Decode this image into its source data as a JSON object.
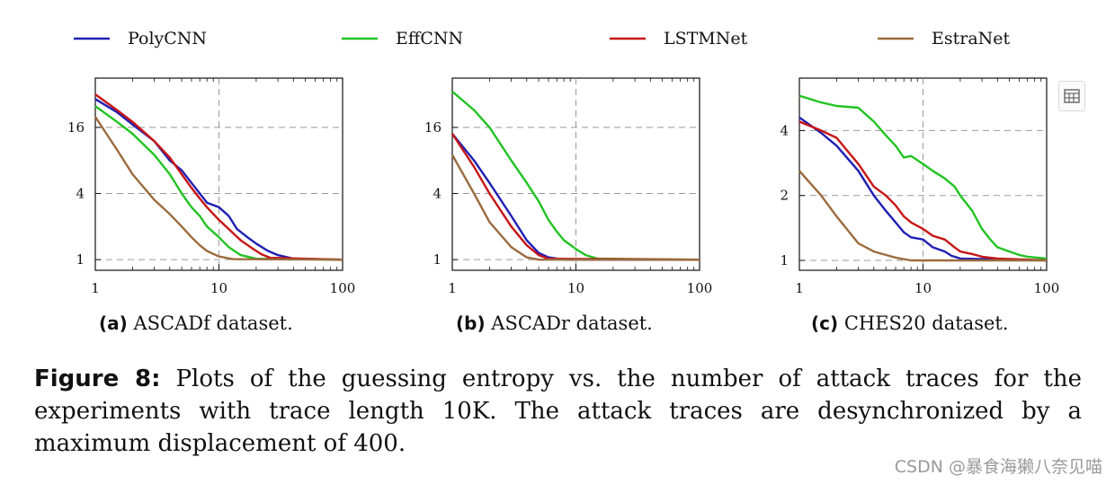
{
  "legend": [
    {
      "name": "PolyCNN",
      "color": "#1f1fb4"
    },
    {
      "name": "EffCNN",
      "color": "#22c322"
    },
    {
      "name": "LSTMNet",
      "color": "#c81414"
    },
    {
      "name": "EstraNet",
      "color": "#9b6b3e"
    }
  ],
  "subcaptions": [
    {
      "tag": "(a)",
      "text": " ASCADf dataset."
    },
    {
      "tag": "(b)",
      "text": " ASCADr dataset."
    },
    {
      "tag": "(c)",
      "text": " CHES20 dataset."
    }
  ],
  "caption": {
    "label": "Figure 8:",
    "text": " Plots of the guessing entropy vs. the number of attack traces for the experiments with trace length 10K. The attack traces are desynchronized by a maximum displacement of 400."
  },
  "watermark": "CSDN @暴食海獭八奈见喵",
  "expand_icon": "expand-icon",
  "chart_data": [
    {
      "type": "line",
      "x_scale": "log",
      "y_scale": "log",
      "xlim": [
        1,
        100
      ],
      "ylim": [
        0.8,
        45
      ],
      "xticks": [
        {
          "v": 1,
          "label": "1"
        },
        {
          "v": 10,
          "label": "10"
        },
        {
          "v": 100,
          "label": "100"
        }
      ],
      "yticks": [
        {
          "v": 1,
          "label": "1"
        },
        {
          "v": 4,
          "label": "4"
        },
        {
          "v": 16,
          "label": "16"
        }
      ],
      "grid": true,
      "series": [
        {
          "name": "PolyCNN",
          "color": "#1f1fb4",
          "points": [
            [
              1,
              29
            ],
            [
              1.5,
              22
            ],
            [
              2,
              17
            ],
            [
              3,
              12
            ],
            [
              4,
              8
            ],
            [
              5,
              6.5
            ],
            [
              6,
              5
            ],
            [
              7,
              4
            ],
            [
              8,
              3.3
            ],
            [
              10,
              3
            ],
            [
              12,
              2.5
            ],
            [
              14,
              1.9
            ],
            [
              17,
              1.6
            ],
            [
              20,
              1.4
            ],
            [
              25,
              1.2
            ],
            [
              30,
              1.1
            ],
            [
              40,
              1.02
            ],
            [
              100,
              1
            ]
          ]
        },
        {
          "name": "EffCNN",
          "color": "#22c322",
          "points": [
            [
              1,
              25
            ],
            [
              1.5,
              18
            ],
            [
              2,
              14
            ],
            [
              3,
              9
            ],
            [
              4,
              6
            ],
            [
              5,
              4
            ],
            [
              6,
              3
            ],
            [
              7,
              2.5
            ],
            [
              8,
              2
            ],
            [
              10,
              1.6
            ],
            [
              12,
              1.3
            ],
            [
              15,
              1.1
            ],
            [
              20,
              1.02
            ],
            [
              100,
              1
            ]
          ]
        },
        {
          "name": "LSTMNet",
          "color": "#c81414",
          "points": [
            [
              1,
              32
            ],
            [
              1.5,
              23
            ],
            [
              2,
              18
            ],
            [
              3,
              12
            ],
            [
              4,
              8.5
            ],
            [
              5,
              6
            ],
            [
              6,
              4.5
            ],
            [
              7,
              3.6
            ],
            [
              8,
              3
            ],
            [
              10,
              2.3
            ],
            [
              12,
              1.9
            ],
            [
              15,
              1.5
            ],
            [
              18,
              1.3
            ],
            [
              22,
              1.12
            ],
            [
              26,
              1.04
            ],
            [
              100,
              1
            ]
          ]
        },
        {
          "name": "EstraNet",
          "color": "#9b6b3e",
          "points": [
            [
              1,
              20
            ],
            [
              1.5,
              10
            ],
            [
              2,
              6
            ],
            [
              3,
              3.5
            ],
            [
              4,
              2.6
            ],
            [
              5,
              2
            ],
            [
              6,
              1.6
            ],
            [
              7,
              1.35
            ],
            [
              8,
              1.2
            ],
            [
              10,
              1.07
            ],
            [
              13,
              1.01
            ],
            [
              100,
              1
            ]
          ]
        }
      ]
    },
    {
      "type": "line",
      "x_scale": "log",
      "y_scale": "log",
      "xlim": [
        1,
        100
      ],
      "ylim": [
        0.8,
        45
      ],
      "xticks": [
        {
          "v": 1,
          "label": "1"
        },
        {
          "v": 10,
          "label": "10"
        },
        {
          "v": 100,
          "label": "100"
        }
      ],
      "yticks": [
        {
          "v": 1,
          "label": "1"
        },
        {
          "v": 4,
          "label": "4"
        },
        {
          "v": 16,
          "label": "16"
        }
      ],
      "grid": true,
      "series": [
        {
          "name": "PolyCNN",
          "color": "#1f1fb4",
          "points": [
            [
              1,
              14
            ],
            [
              1.5,
              8
            ],
            [
              2,
              5
            ],
            [
              3,
              2.5
            ],
            [
              4,
              1.5
            ],
            [
              5,
              1.15
            ],
            [
              6,
              1.05
            ],
            [
              8,
              1
            ],
            [
              100,
              1
            ]
          ]
        },
        {
          "name": "EffCNN",
          "color": "#22c322",
          "points": [
            [
              1,
              34
            ],
            [
              1.5,
              23
            ],
            [
              2,
              16
            ],
            [
              3,
              8
            ],
            [
              4,
              5
            ],
            [
              5,
              3.4
            ],
            [
              6,
              2.3
            ],
            [
              7,
              1.8
            ],
            [
              8,
              1.5
            ],
            [
              10,
              1.25
            ],
            [
              12,
              1.1
            ],
            [
              15,
              1.02
            ],
            [
              100,
              1
            ]
          ]
        },
        {
          "name": "LSTMNet",
          "color": "#c81414",
          "points": [
            [
              1,
              14
            ],
            [
              1.5,
              7
            ],
            [
              2,
              4
            ],
            [
              3,
              2
            ],
            [
              4,
              1.35
            ],
            [
              5,
              1.1
            ],
            [
              6,
              1.02
            ],
            [
              100,
              1
            ]
          ]
        },
        {
          "name": "EstraNet",
          "color": "#9b6b3e",
          "points": [
            [
              1,
              9
            ],
            [
              1.5,
              4
            ],
            [
              2,
              2.2
            ],
            [
              3,
              1.3
            ],
            [
              4,
              1.05
            ],
            [
              5,
              1
            ],
            [
              100,
              1
            ]
          ]
        }
      ]
    },
    {
      "type": "line",
      "x_scale": "log",
      "y_scale": "log",
      "xlim": [
        1,
        100
      ],
      "ylim": [
        0.9,
        7
      ],
      "xticks": [
        {
          "v": 1,
          "label": "1"
        },
        {
          "v": 10,
          "label": "10"
        },
        {
          "v": 100,
          "label": "100"
        }
      ],
      "yticks": [
        {
          "v": 1,
          "label": "1"
        },
        {
          "v": 2,
          "label": "2"
        },
        {
          "v": 4,
          "label": "4"
        }
      ],
      "grid": true,
      "series": [
        {
          "name": "PolyCNN",
          "color": "#1f1fb4",
          "points": [
            [
              1,
              4.6
            ],
            [
              1.5,
              3.9
            ],
            [
              2,
              3.4
            ],
            [
              3,
              2.6
            ],
            [
              4,
              2
            ],
            [
              5,
              1.7
            ],
            [
              6,
              1.5
            ],
            [
              7,
              1.35
            ],
            [
              8,
              1.28
            ],
            [
              10,
              1.25
            ],
            [
              12,
              1.15
            ],
            [
              15,
              1.1
            ],
            [
              17,
              1.05
            ],
            [
              20,
              1.02
            ],
            [
              100,
              1
            ]
          ]
        },
        {
          "name": "EffCNN",
          "color": "#22c322",
          "points": [
            [
              1,
              5.8
            ],
            [
              1.5,
              5.4
            ],
            [
              2,
              5.2
            ],
            [
              3,
              5.1
            ],
            [
              4,
              4.4
            ],
            [
              5,
              3.8
            ],
            [
              6,
              3.4
            ],
            [
              7,
              3
            ],
            [
              8,
              3.05
            ],
            [
              10,
              2.8
            ],
            [
              12,
              2.6
            ],
            [
              15,
              2.4
            ],
            [
              18,
              2.2
            ],
            [
              20,
              2
            ],
            [
              25,
              1.7
            ],
            [
              30,
              1.4
            ],
            [
              35,
              1.25
            ],
            [
              40,
              1.15
            ],
            [
              50,
              1.1
            ],
            [
              60,
              1.06
            ],
            [
              70,
              1.04
            ],
            [
              100,
              1.02
            ]
          ]
        },
        {
          "name": "LSTMNet",
          "color": "#c81414",
          "points": [
            [
              1,
              4.4
            ],
            [
              1.5,
              4
            ],
            [
              2,
              3.7
            ],
            [
              3,
              2.8
            ],
            [
              4,
              2.2
            ],
            [
              5,
              2
            ],
            [
              6,
              1.8
            ],
            [
              7,
              1.6
            ],
            [
              8,
              1.5
            ],
            [
              10,
              1.4
            ],
            [
              12,
              1.3
            ],
            [
              15,
              1.25
            ],
            [
              18,
              1.15
            ],
            [
              20,
              1.1
            ],
            [
              25,
              1.07
            ],
            [
              30,
              1.04
            ],
            [
              40,
              1.02
            ],
            [
              100,
              1
            ]
          ]
        },
        {
          "name": "EstraNet",
          "color": "#9b6b3e",
          "points": [
            [
              1,
              2.6
            ],
            [
              1.5,
              2
            ],
            [
              2,
              1.6
            ],
            [
              3,
              1.2
            ],
            [
              4,
              1.1
            ],
            [
              5,
              1.06
            ],
            [
              6,
              1.03
            ],
            [
              8,
              1
            ],
            [
              100,
              1
            ]
          ]
        }
      ]
    }
  ]
}
